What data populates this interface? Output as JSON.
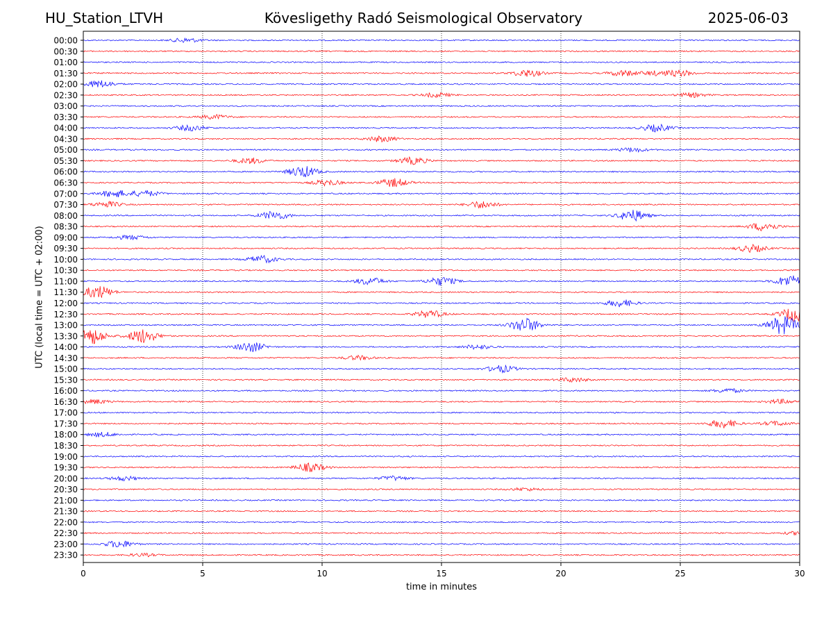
{
  "header": {
    "station": "HU_Station_LTVH",
    "observatory": "Kövesligethy Radó Seismological Observatory",
    "date": "2025-06-03"
  },
  "chart_data": {
    "type": "line",
    "xlabel": "time in minutes",
    "ylabel": "UTC (local time = UTC + 02:00)",
    "xlim": [
      0,
      30
    ],
    "xticks": [
      0,
      5,
      10,
      15,
      20,
      25,
      30
    ],
    "vertical_gridlines": [
      5,
      10,
      15,
      20,
      25
    ],
    "grid_style": "dotted",
    "colors": [
      "#0000ff",
      "#ff0000"
    ],
    "rows": [
      {
        "label": "00:00",
        "events": [
          {
            "t": 4.3,
            "amp": 3
          }
        ]
      },
      {
        "label": "00:30",
        "events": []
      },
      {
        "label": "01:00",
        "events": []
      },
      {
        "label": "01:30",
        "events": [
          {
            "t": 18.6,
            "amp": 5
          },
          {
            "t": 22.6,
            "amp": 4
          },
          {
            "t": 24.0,
            "amp": 3
          },
          {
            "t": 25.0,
            "amp": 4
          }
        ]
      },
      {
        "label": "02:00",
        "events": [
          {
            "t": 0.7,
            "amp": 5
          }
        ]
      },
      {
        "label": "02:30",
        "events": [
          {
            "t": 14.8,
            "amp": 3
          },
          {
            "t": 25.5,
            "amp": 3
          }
        ]
      },
      {
        "label": "03:00",
        "events": []
      },
      {
        "label": "03:30",
        "events": [
          {
            "t": 5.5,
            "amp": 3
          }
        ]
      },
      {
        "label": "04:00",
        "events": [
          {
            "t": 4.5,
            "amp": 4
          },
          {
            "t": 24.0,
            "amp": 5
          }
        ]
      },
      {
        "label": "04:30",
        "events": [
          {
            "t": 12.5,
            "amp": 4
          }
        ]
      },
      {
        "label": "05:00",
        "events": [
          {
            "t": 23.0,
            "amp": 3
          }
        ]
      },
      {
        "label": "05:30",
        "events": [
          {
            "t": 7.0,
            "amp": 4
          },
          {
            "t": 13.8,
            "amp": 5
          }
        ]
      },
      {
        "label": "06:00",
        "events": [
          {
            "t": 9.2,
            "amp": 8
          }
        ]
      },
      {
        "label": "06:30",
        "events": [
          {
            "t": 13.0,
            "amp": 6
          },
          {
            "t": 10.2,
            "amp": 4
          }
        ]
      },
      {
        "label": "07:00",
        "events": [
          {
            "t": 1.3,
            "amp": 5
          },
          {
            "t": 2.6,
            "amp": 4
          }
        ]
      },
      {
        "label": "07:30",
        "events": [
          {
            "t": 1.0,
            "amp": 4
          },
          {
            "t": 16.7,
            "amp": 5
          }
        ]
      },
      {
        "label": "08:00",
        "events": [
          {
            "t": 8.0,
            "amp": 6
          },
          {
            "t": 23.0,
            "amp": 8
          }
        ]
      },
      {
        "label": "08:30",
        "events": [
          {
            "t": 28.5,
            "amp": 6
          }
        ]
      },
      {
        "label": "09:00",
        "events": [
          {
            "t": 2.0,
            "amp": 3
          }
        ]
      },
      {
        "label": "09:30",
        "events": [
          {
            "t": 28.0,
            "amp": 5
          }
        ]
      },
      {
        "label": "10:00",
        "events": [
          {
            "t": 7.5,
            "amp": 5
          }
        ]
      },
      {
        "label": "10:30",
        "events": []
      },
      {
        "label": "11:00",
        "events": [
          {
            "t": 12.0,
            "amp": 5
          },
          {
            "t": 15.0,
            "amp": 6
          },
          {
            "t": 29.6,
            "amp": 8
          }
        ]
      },
      {
        "label": "11:30",
        "events": [
          {
            "t": 0.6,
            "amp": 9
          }
        ]
      },
      {
        "label": "12:00",
        "events": [
          {
            "t": 22.5,
            "amp": 5
          }
        ]
      },
      {
        "label": "12:30",
        "events": [
          {
            "t": 14.5,
            "amp": 5
          },
          {
            "t": 29.8,
            "amp": 10
          }
        ]
      },
      {
        "label": "13:00",
        "events": [
          {
            "t": 18.5,
            "amp": 10
          },
          {
            "t": 29.3,
            "amp": 13
          }
        ]
      },
      {
        "label": "13:30",
        "events": [
          {
            "t": 0.3,
            "amp": 12
          },
          {
            "t": 2.5,
            "amp": 10
          }
        ]
      },
      {
        "label": "14:00",
        "events": [
          {
            "t": 7.0,
            "amp": 7
          },
          {
            "t": 16.5,
            "amp": 3
          }
        ]
      },
      {
        "label": "14:30",
        "events": [
          {
            "t": 11.5,
            "amp": 3
          }
        ]
      },
      {
        "label": "15:00",
        "events": [
          {
            "t": 17.5,
            "amp": 5
          }
        ]
      },
      {
        "label": "15:30",
        "events": [
          {
            "t": 20.5,
            "amp": 3
          }
        ]
      },
      {
        "label": "16:00",
        "events": [
          {
            "t": 27.0,
            "amp": 3
          }
        ]
      },
      {
        "label": "16:30",
        "events": [
          {
            "t": 0.5,
            "amp": 3
          },
          {
            "t": 29.2,
            "amp": 3
          }
        ]
      },
      {
        "label": "17:00",
        "events": []
      },
      {
        "label": "17:30",
        "events": [
          {
            "t": 26.8,
            "amp": 6
          },
          {
            "t": 29.0,
            "amp": 3
          }
        ]
      },
      {
        "label": "18:00",
        "events": [
          {
            "t": 0.8,
            "amp": 3
          }
        ]
      },
      {
        "label": "18:30",
        "events": []
      },
      {
        "label": "19:00",
        "events": []
      },
      {
        "label": "19:30",
        "events": [
          {
            "t": 9.5,
            "amp": 6
          }
        ]
      },
      {
        "label": "20:00",
        "events": [
          {
            "t": 1.7,
            "amp": 3
          },
          {
            "t": 13.0,
            "amp": 3
          }
        ]
      },
      {
        "label": "20:30",
        "events": [
          {
            "t": 18.5,
            "amp": 2
          }
        ]
      },
      {
        "label": "21:00",
        "events": []
      },
      {
        "label": "21:30",
        "events": []
      },
      {
        "label": "22:00",
        "events": []
      },
      {
        "label": "22:30",
        "events": [
          {
            "t": 29.9,
            "amp": 2
          }
        ]
      },
      {
        "label": "23:00",
        "events": [
          {
            "t": 1.5,
            "amp": 5
          }
        ]
      },
      {
        "label": "23:30",
        "events": [
          {
            "t": 2.5,
            "amp": 2
          }
        ]
      }
    ]
  }
}
